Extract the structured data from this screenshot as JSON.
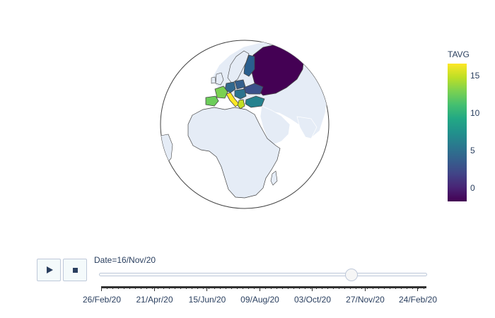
{
  "colorbar": {
    "title": "TAVG",
    "gradient": [
      "#440154",
      "#482475",
      "#414487",
      "#355f8d",
      "#2a788e",
      "#21918c",
      "#22a884",
      "#44bf70",
      "#7ad151",
      "#bddf26",
      "#fde725"
    ],
    "ticks": [
      {
        "label": "15",
        "value": 15
      },
      {
        "label": "10",
        "value": 10
      },
      {
        "label": "5",
        "value": 5
      },
      {
        "label": "0",
        "value": 0
      }
    ],
    "range": [
      -1.8,
      16.6
    ]
  },
  "map": {
    "land_color": "#e5ecf6",
    "border_color": "#444444",
    "countries": [
      {
        "name": "Russia",
        "color": "#440154"
      },
      {
        "name": "Finland",
        "color": "#2a5f8e"
      },
      {
        "name": "Ukraine",
        "color": "#3b528b"
      },
      {
        "name": "Poland",
        "color": "#355f8d"
      },
      {
        "name": "Germany",
        "color": "#31688e"
      },
      {
        "name": "France",
        "color": "#7ad151"
      },
      {
        "name": "Spain",
        "color": "#6ccd5a"
      },
      {
        "name": "Italy",
        "color": "#fde725"
      },
      {
        "name": "Greece",
        "color": "#c2df23"
      },
      {
        "name": "Turkey",
        "color": "#26828e"
      },
      {
        "name": "Balkans",
        "color": "#2c738e"
      }
    ]
  },
  "animation": {
    "play_icon": "play-icon",
    "stop_icon": "stop-icon",
    "current_value": "Date=16/Nov/20",
    "progress": 0.77,
    "tick_labels": [
      "26/Feb/20",
      "21/Apr/20",
      "15/Jun/20",
      "09/Aug/20",
      "03/Oct/20",
      "27/Nov/20",
      "24/Feb/20"
    ]
  }
}
